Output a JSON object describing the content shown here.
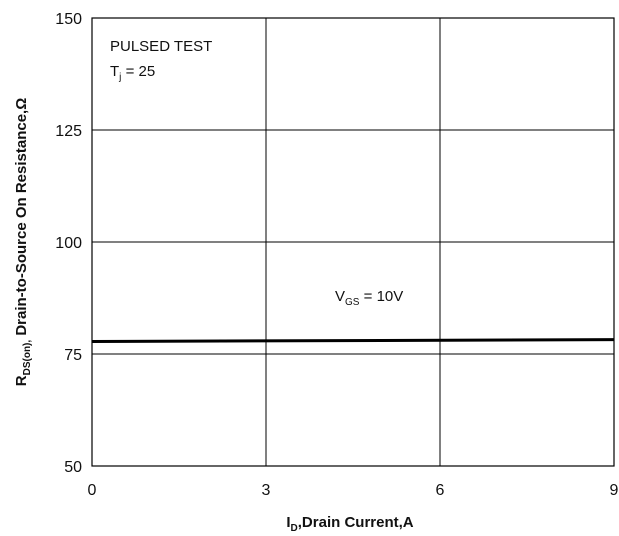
{
  "chart_data": {
    "type": "line",
    "title": "",
    "xlabel": {
      "main": "I",
      "sub": "D",
      "rest": ",Drain Current,A"
    },
    "ylabel": {
      "main": "R",
      "sub": "DS(on),",
      "rest": " Drain-to-Source On Resistance,Ω"
    },
    "xlim": [
      0,
      9
    ],
    "ylim": [
      50,
      150
    ],
    "xticks": [
      0,
      3,
      6,
      9
    ],
    "yticks": [
      50,
      75,
      100,
      125,
      150
    ],
    "xtick_labels": [
      "0",
      "3",
      "6",
      "9"
    ],
    "ytick_labels": [
      "50",
      "75",
      "100",
      "125",
      "150"
    ],
    "grid": true,
    "series": [
      {
        "x": [
          0,
          9
        ],
        "y": [
          77.8,
          78.2
        ],
        "color": "#000000"
      }
    ],
    "annotations": {
      "conditions_line1": "PULSED TEST",
      "conditions_line2_main": "T",
      "conditions_line2_sub": "j",
      "conditions_line2_rest": " = 25",
      "series_label_main": "V",
      "series_label_sub": "GS",
      "series_label_rest": " = 10V"
    }
  }
}
